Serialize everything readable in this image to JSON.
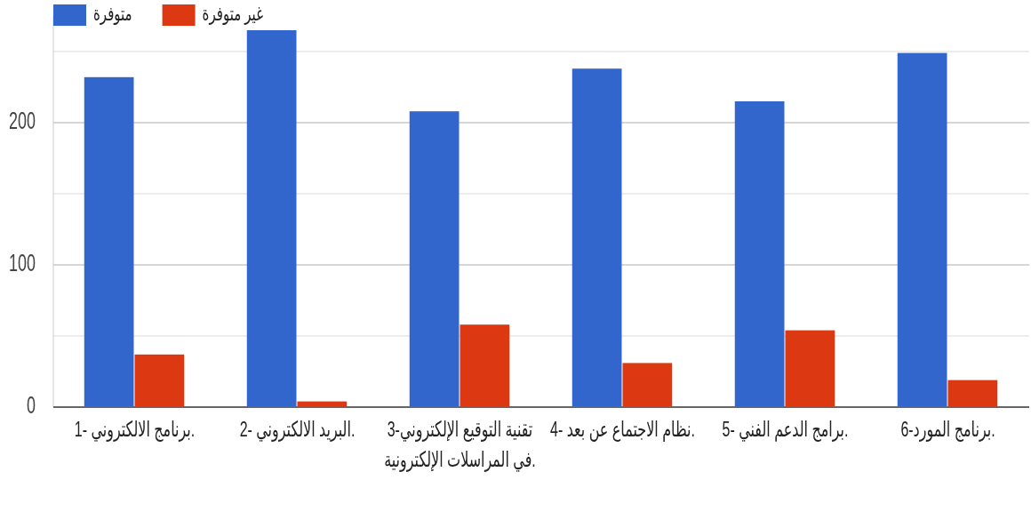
{
  "chart_data": {
    "type": "bar",
    "categories": [
      "1- برنامج الالكتروني.",
      "2- البريد الالكتروني.",
      "3-تقنية التوقيع الإلكتروني في المراسلات الإلكترونية.",
      "4- نظام الاجتماع عن بعد.",
      "5- برامج الدعم الفني.",
      "6-برنامج المورد."
    ],
    "series": [
      {
        "name": "متوفرة",
        "color": "#3366cc",
        "values": [
          232,
          265,
          208,
          238,
          215,
          249
        ]
      },
      {
        "name": "غير متوفرة",
        "color": "#dc3912",
        "values": [
          37,
          4,
          58,
          31,
          54,
          19
        ]
      }
    ],
    "ylim": [
      0,
      275
    ],
    "yticks": [
      0,
      {
        "value": 50,
        "label": null
      },
      100,
      {
        "value": 150,
        "label": null
      },
      200,
      {
        "value": 250,
        "label": null
      }
    ],
    "grid": "y",
    "legend": "top left"
  }
}
